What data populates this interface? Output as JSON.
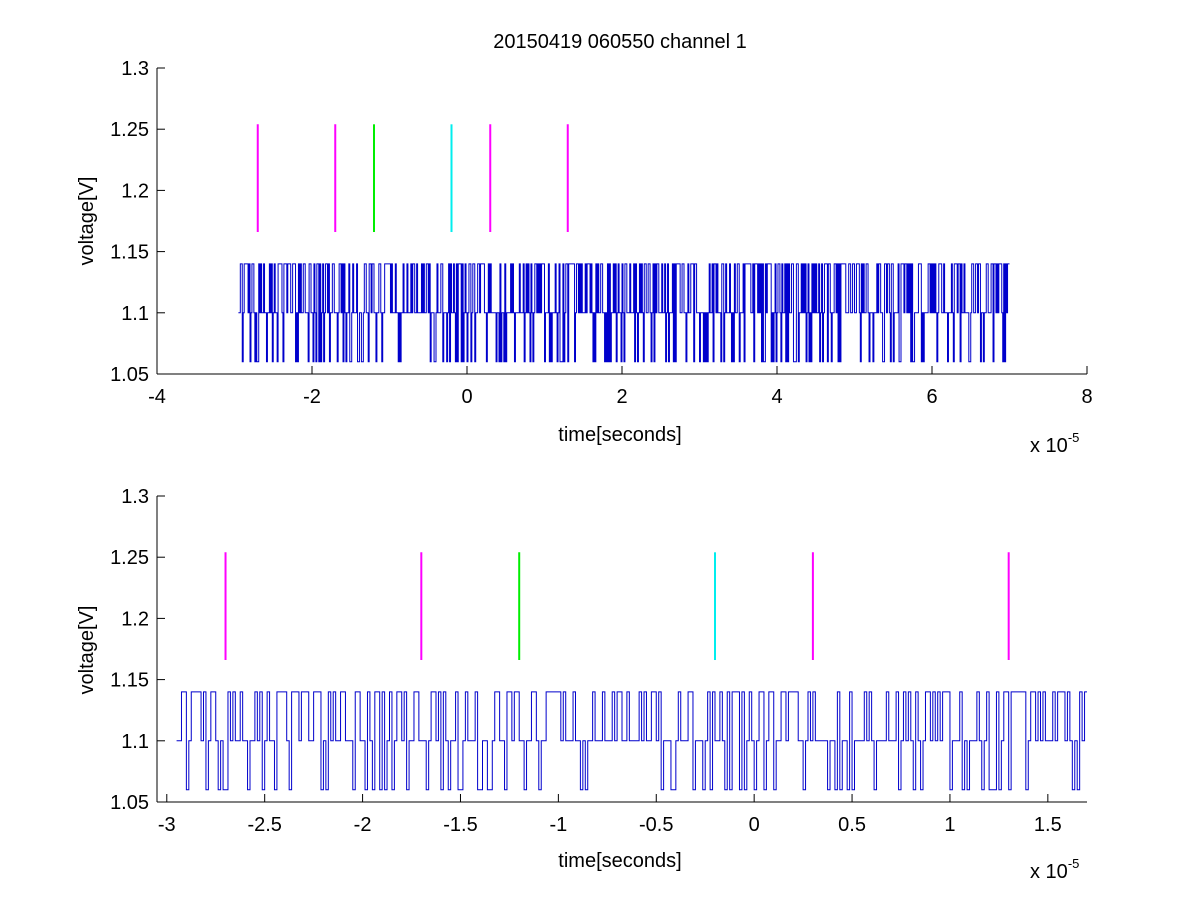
{
  "figure": {
    "title": "20150419 060550 channel 1"
  },
  "colors": {
    "trace": "#0000cc",
    "magenta": "#ff00ff",
    "green": "#00ee00",
    "cyan": "#00eeee",
    "axis": "#000000",
    "background": "#ffffff"
  },
  "chart_data": [
    {
      "type": "line",
      "title": "20150419 060550 channel 1",
      "xlabel": "time[seconds]",
      "ylabel": "voltage[V]",
      "x_exponent_label": "x 10",
      "x_exponent": "-5",
      "xlim": [
        -4,
        8
      ],
      "ylim": [
        1.05,
        1.3
      ],
      "xticks": [
        -4,
        -2,
        0,
        2,
        4,
        6,
        8
      ],
      "xtick_labels": [
        "-4",
        "-2",
        "0",
        "2",
        "4",
        "6",
        "8"
      ],
      "yticks": [
        1.05,
        1.1,
        1.15,
        1.2,
        1.25,
        1.3
      ],
      "ytick_labels": [
        "1.05",
        "1.1",
        "1.15",
        "1.2",
        "1.25",
        "1.3"
      ],
      "grid": false,
      "series": [
        {
          "style": "step",
          "color": "#0000cc",
          "x_range": [
            -2.95,
            7.0
          ],
          "levels": [
            1.06,
            1.1,
            1.14
          ],
          "baseline": 1.1
        }
      ],
      "markers": [
        {
          "x": -2.7,
          "y_range": [
            1.166,
            1.254
          ],
          "color": "#ff00ff"
        },
        {
          "x": -1.7,
          "y_range": [
            1.166,
            1.254
          ],
          "color": "#ff00ff"
        },
        {
          "x": -1.2,
          "y_range": [
            1.166,
            1.254
          ],
          "color": "#00ee00"
        },
        {
          "x": -0.2,
          "y_range": [
            1.166,
            1.254
          ],
          "color": "#00eeee"
        },
        {
          "x": 0.3,
          "y_range": [
            1.166,
            1.254
          ],
          "color": "#ff00ff"
        },
        {
          "x": 1.3,
          "y_range": [
            1.166,
            1.254
          ],
          "color": "#ff00ff"
        }
      ]
    },
    {
      "type": "line",
      "title": "",
      "xlabel": "time[seconds]",
      "ylabel": "voltage[V]",
      "x_exponent_label": "x 10",
      "x_exponent": "-5",
      "xlim": [
        -3.05,
        1.7
      ],
      "ylim": [
        1.05,
        1.3
      ],
      "xticks": [
        -3,
        -2.5,
        -2,
        -1.5,
        -1,
        -0.5,
        0,
        0.5,
        1,
        1.5
      ],
      "xtick_labels": [
        "-3",
        "-2.5",
        "-2",
        "-1.5",
        "-1",
        "-0.5",
        "0",
        "0.5",
        "1",
        "1.5"
      ],
      "yticks": [
        1.05,
        1.1,
        1.15,
        1.2,
        1.25,
        1.3
      ],
      "ytick_labels": [
        "1.05",
        "1.1",
        "1.15",
        "1.2",
        "1.25",
        "1.3"
      ],
      "grid": false,
      "series": [
        {
          "style": "step",
          "color": "#0000cc",
          "x_range": [
            -2.95,
            1.7
          ],
          "levels": [
            1.06,
            1.1,
            1.14
          ],
          "baseline": 1.1
        }
      ],
      "markers": [
        {
          "x": -2.7,
          "y_range": [
            1.166,
            1.254
          ],
          "color": "#ff00ff"
        },
        {
          "x": -1.7,
          "y_range": [
            1.166,
            1.254
          ],
          "color": "#ff00ff"
        },
        {
          "x": -1.2,
          "y_range": [
            1.166,
            1.254
          ],
          "color": "#00ee00"
        },
        {
          "x": -0.2,
          "y_range": [
            1.166,
            1.254
          ],
          "color": "#00eeee"
        },
        {
          "x": 0.3,
          "y_range": [
            1.166,
            1.254
          ],
          "color": "#ff00ff"
        },
        {
          "x": 1.3,
          "y_range": [
            1.166,
            1.254
          ],
          "color": "#ff00ff"
        }
      ]
    }
  ]
}
